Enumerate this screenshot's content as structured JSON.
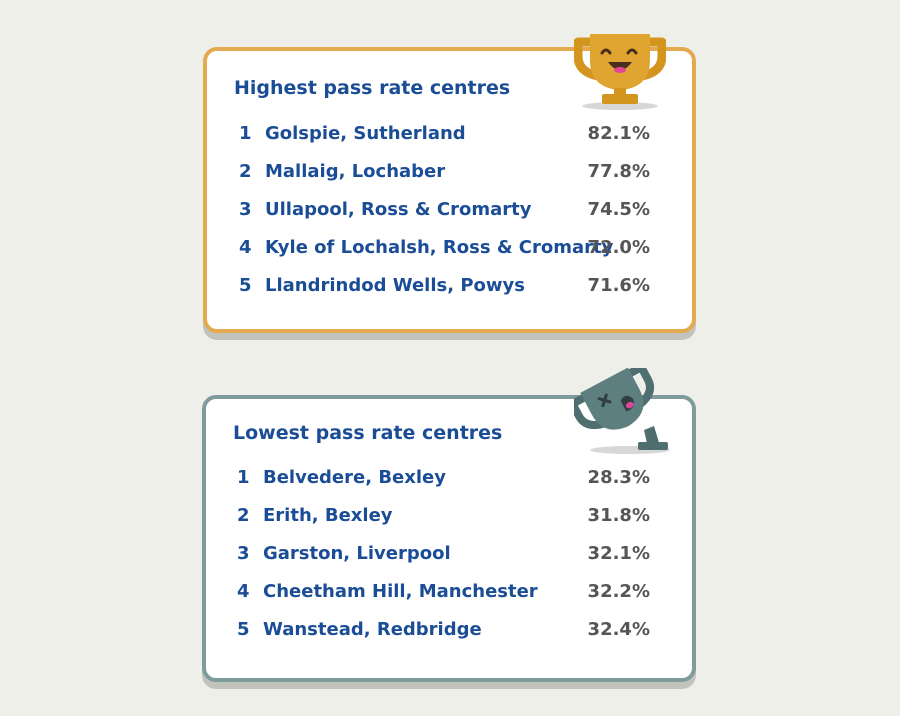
{
  "highest": {
    "title": "Highest pass rate centres",
    "rows": [
      {
        "rank": "1",
        "place": "Golspie, Sutherland",
        "rate": "82.1%"
      },
      {
        "rank": "2",
        "place": "Mallaig, Lochaber",
        "rate": "77.8%"
      },
      {
        "rank": "3",
        "place": "Ullapool, Ross & Cromarty",
        "rate": "74.5%"
      },
      {
        "rank": "4",
        "place": "Kyle of Lochalsh, Ross & Cromarty",
        "rate": "72.0%"
      },
      {
        "rank": "5",
        "place": "Llandrindod Wells, Powys",
        "rate": "71.6%"
      }
    ]
  },
  "lowest": {
    "title": "Lowest pass rate centres",
    "rows": [
      {
        "rank": "1",
        "place": "Belvedere, Bexley",
        "rate": "28.3%"
      },
      {
        "rank": "2",
        "place": "Erith, Bexley",
        "rate": "31.8%"
      },
      {
        "rank": "3",
        "place": "Garston, Liverpool",
        "rate": "32.1%"
      },
      {
        "rank": "4",
        "place": "Cheetham Hill, Manchester",
        "rate": "32.2%"
      },
      {
        "rank": "5",
        "place": "Wanstead, Redbridge",
        "rate": "32.4%"
      }
    ]
  },
  "colors": {
    "background": "#efefea",
    "gold_border": "#e3aa4f",
    "grey_border": "#7f9c9c",
    "text_blue": "#1b4d97",
    "text_grey": "#555555"
  },
  "icons": {
    "top": "happy-trophy-icon",
    "bottom": "knocked-over-trophy-icon"
  }
}
